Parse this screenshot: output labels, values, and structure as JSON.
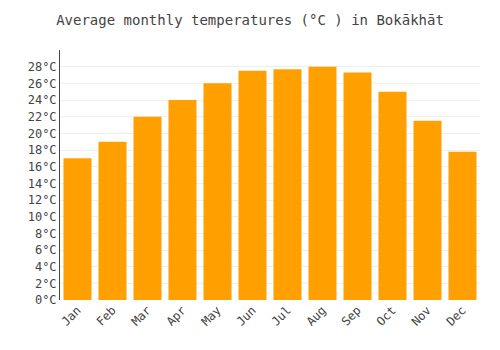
{
  "chart_data": {
    "type": "bar",
    "title": "Average monthly temperatures (°C ) in Bokākhāt",
    "categories": [
      "Jan",
      "Feb",
      "Mar",
      "Apr",
      "May",
      "Jun",
      "Jul",
      "Aug",
      "Sep",
      "Oct",
      "Nov",
      "Dec"
    ],
    "values": [
      17.0,
      19.0,
      22.0,
      24.0,
      26.0,
      27.5,
      27.7,
      28.0,
      27.3,
      25.0,
      21.5,
      17.8
    ],
    "color": "#FFA000",
    "ylim": [
      0,
      30
    ],
    "yticks": [
      {
        "value": 0,
        "label": "0°C"
      },
      {
        "value": 2,
        "label": "2°C"
      },
      {
        "value": 4,
        "label": "4°C"
      },
      {
        "value": 6,
        "label": "6°C"
      },
      {
        "value": 8,
        "label": "8°C"
      },
      {
        "value": 10,
        "label": "10°C"
      },
      {
        "value": 12,
        "label": "12°C"
      },
      {
        "value": 14,
        "label": "14°C"
      },
      {
        "value": 16,
        "label": "16°C"
      },
      {
        "value": 18,
        "label": "18°C"
      },
      {
        "value": 20,
        "label": "20°C"
      },
      {
        "value": 22,
        "label": "22°C"
      },
      {
        "value": 24,
        "label": "24°C"
      },
      {
        "value": 26,
        "label": "26°C"
      },
      {
        "value": 28,
        "label": "28°C"
      }
    ],
    "grid": true
  }
}
